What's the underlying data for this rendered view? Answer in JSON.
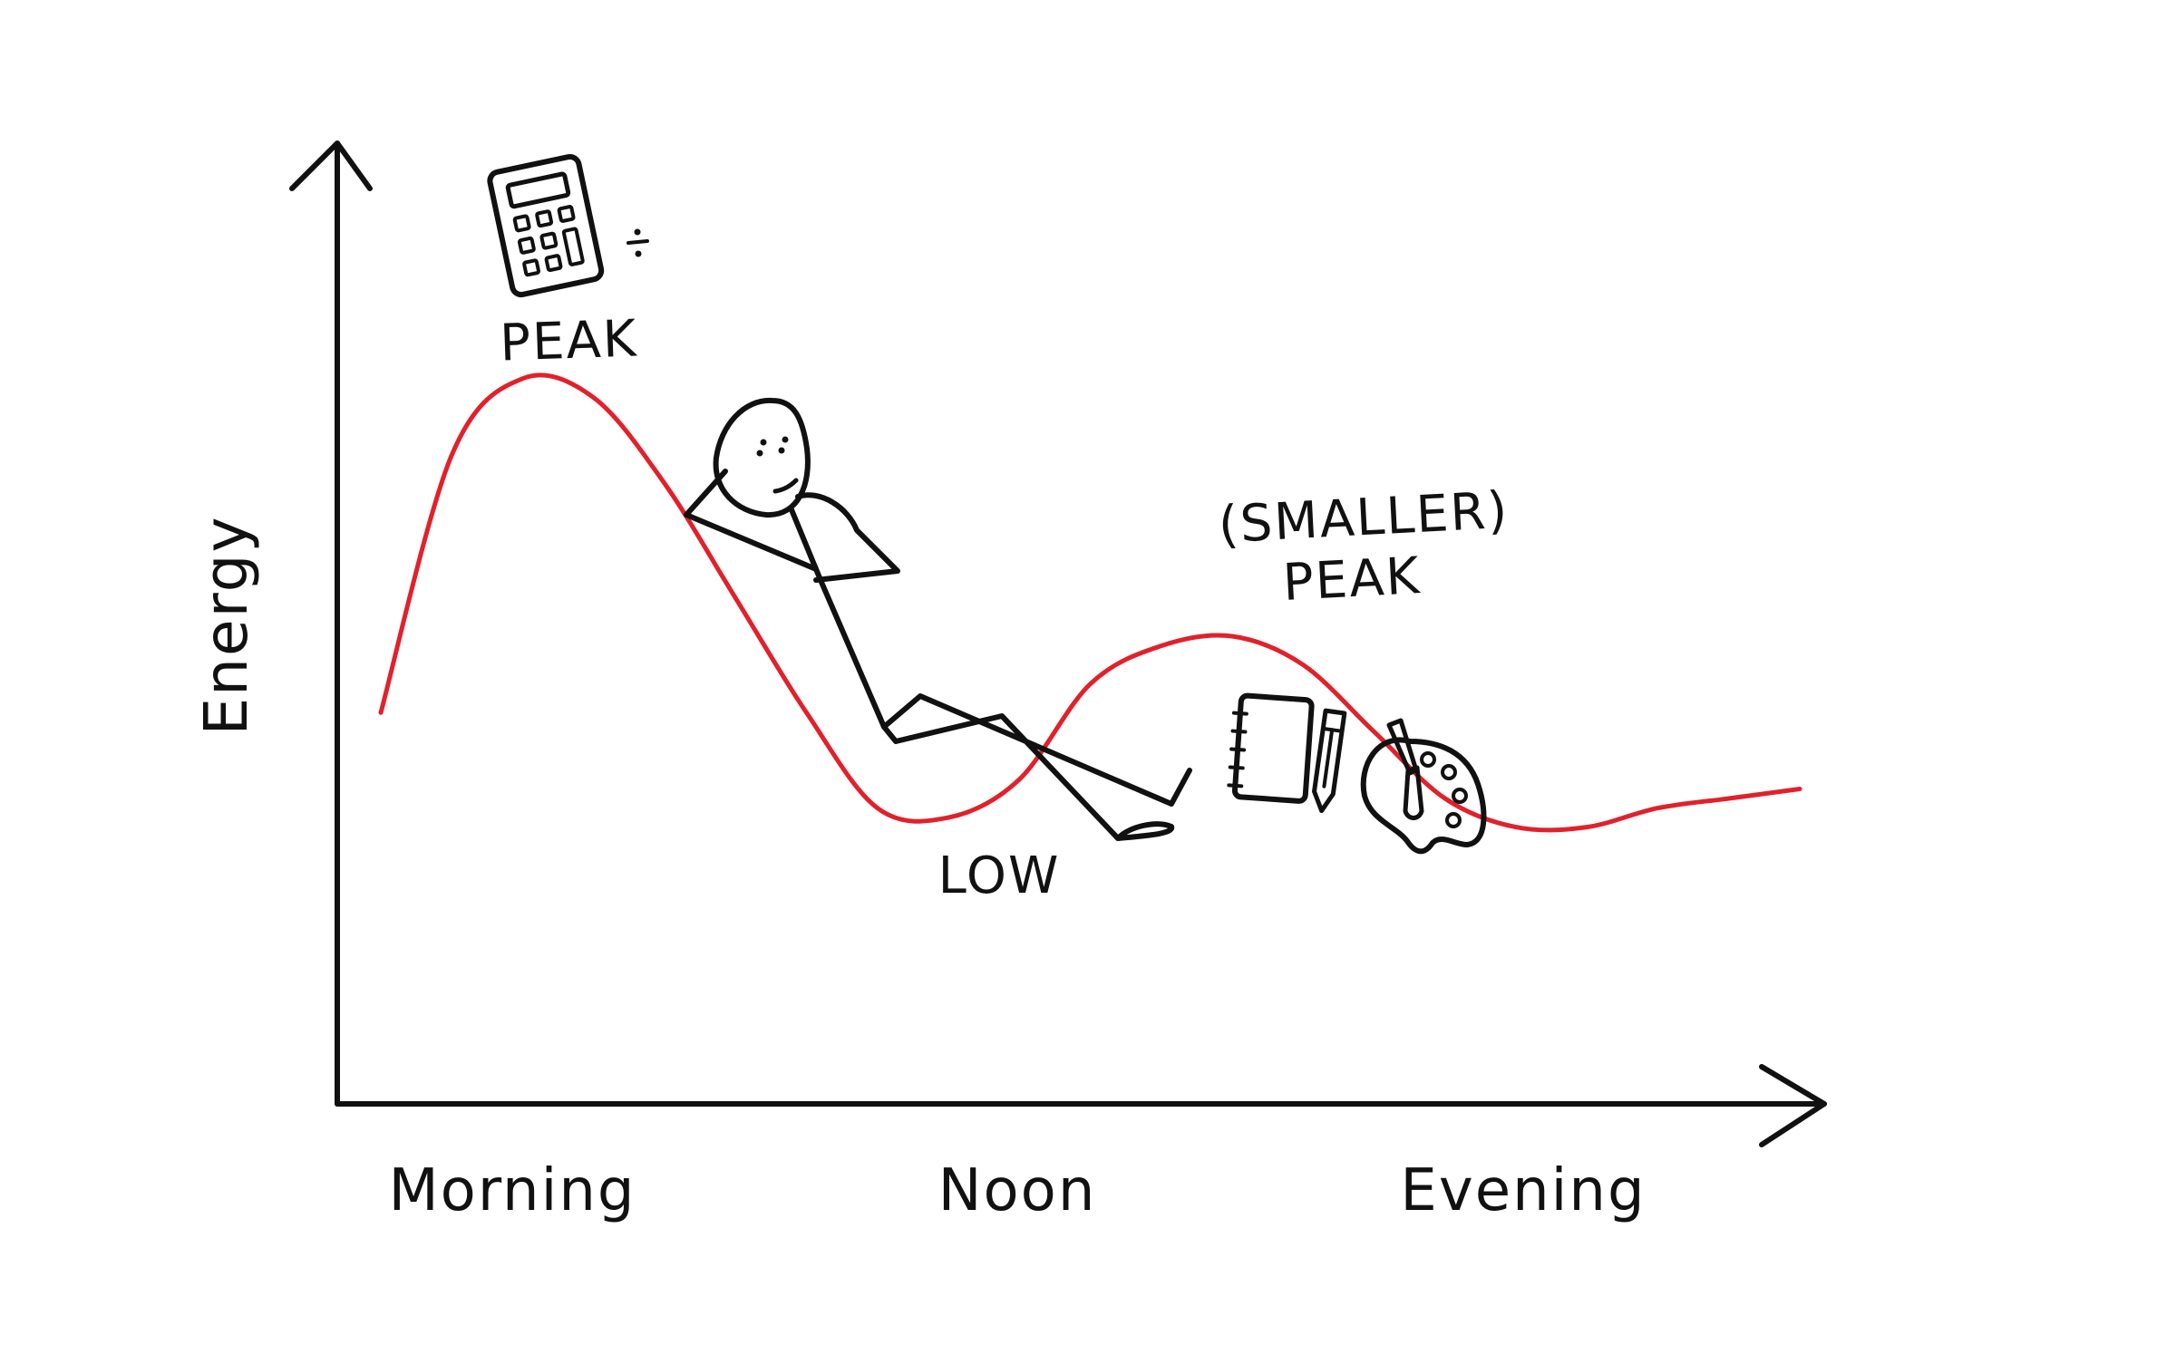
{
  "axes": {
    "y_label": "Energy",
    "x_labels": [
      "Morning",
      "Noon",
      "Evening"
    ]
  },
  "annotations": {
    "peak": "PEAK",
    "smaller_peak_line1": "(SMALLER)",
    "smaller_peak_line2": "PEAK",
    "low": "LOW"
  },
  "chart_data": {
    "type": "line",
    "x": [
      0,
      0.05,
      0.1,
      0.15,
      0.2,
      0.25,
      0.3,
      0.35,
      0.4,
      0.45,
      0.5,
      0.55,
      0.6,
      0.65,
      0.7,
      0.75,
      0.8,
      0.85,
      0.9,
      0.95,
      1.0
    ],
    "series": [
      {
        "values": [
          0.41,
          0.68,
          0.76,
          0.74,
          0.65,
          0.53,
          0.41,
          0.31,
          0.3,
          0.34,
          0.44,
          0.48,
          0.49,
          0.46,
          0.39,
          0.32,
          0.29,
          0.29,
          0.31,
          0.32,
          0.33
        ]
      }
    ],
    "categories": [
      "Morning",
      "Noon",
      "Evening"
    ],
    "xlabel": "",
    "ylabel": "Energy",
    "ylim": [
      0,
      1
    ],
    "grid": false,
    "colors": {
      "curve": "#e1212b",
      "ink": "#111111"
    }
  },
  "icons": [
    "calculator-icon",
    "divide-icon",
    "notebook-icon",
    "pen-icon",
    "palette-icon"
  ]
}
